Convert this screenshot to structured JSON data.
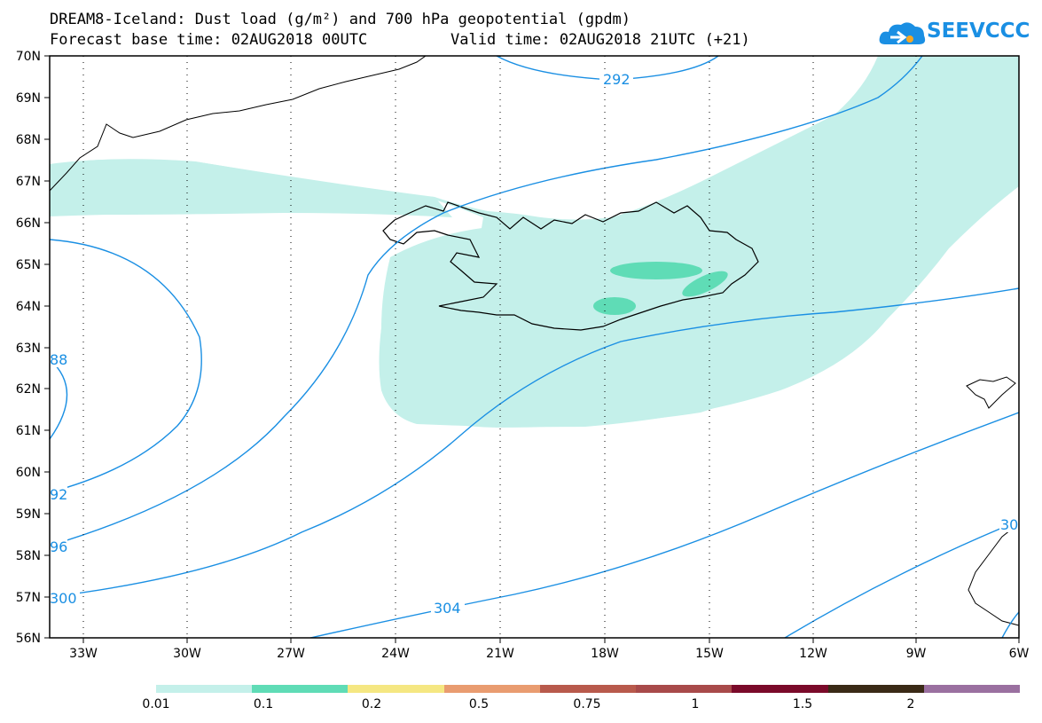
{
  "title": {
    "line1": "DREAM8-Iceland: Dust load (g/m²) and 700 hPa geopotential (gpdm)",
    "line2": "Forecast base time: 02AUG2018 00UTC",
    "line2b": "Valid time: 02AUG2018 21UTC (+21)"
  },
  "logo": {
    "text": "SEEVCCC",
    "icon": "cloud-logo-icon"
  },
  "axes": {
    "lat_labels": [
      "70N",
      "69N",
      "68N",
      "67N",
      "66N",
      "65N",
      "64N",
      "63N",
      "62N",
      "61N",
      "60N",
      "59N",
      "58N",
      "57N",
      "56N"
    ],
    "lon_labels": [
      "33W",
      "30W",
      "27W",
      "24W",
      "21W",
      "18W",
      "15W",
      "12W",
      "9W",
      "6W"
    ]
  },
  "contour_labels": [
    "292",
    "88",
    "92",
    "96",
    "300",
    "304",
    "30"
  ],
  "legend": {
    "labels": [
      "0.01",
      "0.1",
      "0.2",
      "0.5",
      "0.75",
      "1",
      "1.5",
      "2"
    ],
    "colors": [
      "#c4f0ea",
      "#5fdcb6",
      "#f5e782",
      "#e99c70",
      "#b85a4c",
      "#a84a4a",
      "#7a0a2a",
      "#3a2a16",
      "#9a70a0"
    ]
  },
  "colors": {
    "contour": "#1a8fe3",
    "dust_light": "#c4f0ea",
    "dust_medium": "#5fdcb6"
  }
}
